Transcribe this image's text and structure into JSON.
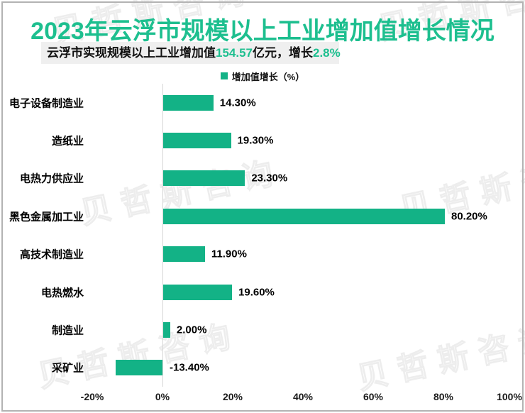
{
  "title": "2023年云浮市规模以上工业增加值增长情况",
  "subtitle": {
    "prefix": "云浮市实现规模以上工业增加值",
    "value_amount": "154.57",
    "middle": "亿元，增长",
    "value_growth": "2.8%"
  },
  "legend": {
    "label": "增加值增长（%）"
  },
  "watermark": {
    "text": "贝哲斯咨询"
  },
  "colors": {
    "title_green": "#1DBF8F",
    "bar_green": "#13B286",
    "subtitle_bg": "#EFEFEF",
    "axis_line": "#D6D6D6",
    "frame_border": "#B3B3B3"
  },
  "chart_data": {
    "type": "bar",
    "orientation": "horizontal",
    "title": "2023年云浮市规模以上工业增加值增长情况",
    "series_name": "增加值增长（%）",
    "categories": [
      "电子设备制造业",
      "造纸业",
      "电热力供应业",
      "黑色金属加工业",
      "高技术制造业",
      "电热燃水",
      "制造业",
      "采矿业"
    ],
    "values": [
      14.3,
      19.3,
      23.3,
      80.2,
      11.9,
      19.6,
      2.0,
      -13.4
    ],
    "value_labels": [
      "14.30%",
      "19.30%",
      "23.30%",
      "80.20%",
      "11.90%",
      "19.60%",
      "2.00%",
      "-13.40%"
    ],
    "xlabel": "",
    "ylabel": "",
    "xlim": [
      -20,
      100
    ],
    "x_ticks": [
      {
        "value": -20,
        "label": "-20%"
      },
      {
        "value": 0,
        "label": "0%"
      },
      {
        "value": 20,
        "label": "20%"
      },
      {
        "value": 40,
        "label": "40%"
      },
      {
        "value": 60,
        "label": "60%"
      },
      {
        "value": 80,
        "label": "80%"
      },
      {
        "value": 100,
        "label": "100%"
      }
    ],
    "grid": false,
    "legend_position": "top"
  }
}
